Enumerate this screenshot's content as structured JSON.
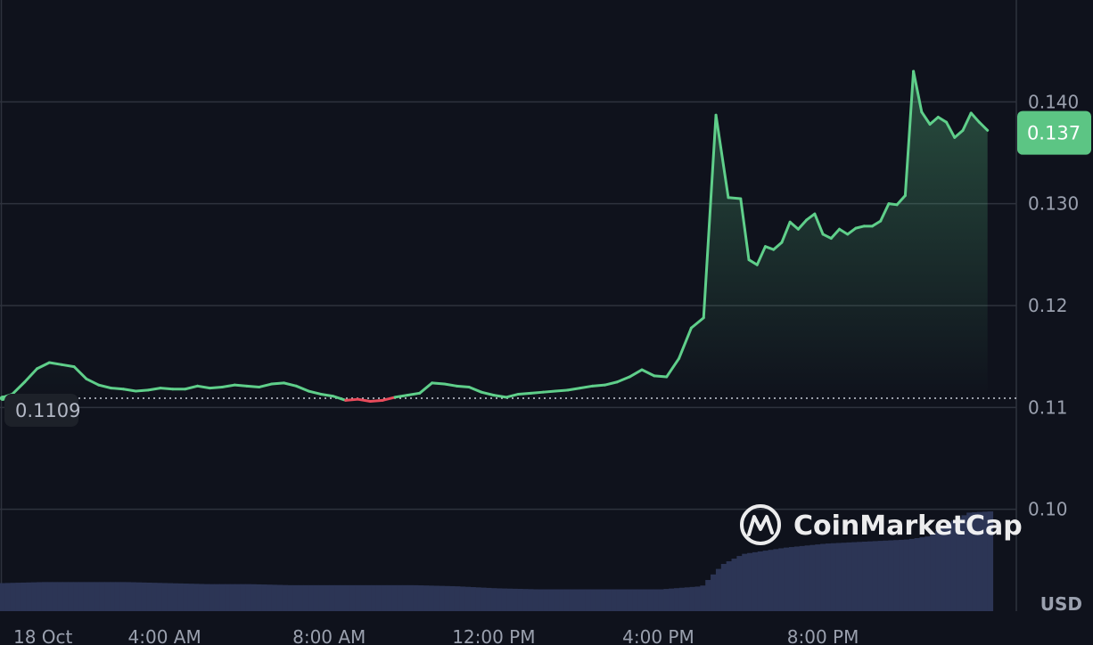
{
  "chart_data": {
    "type": "line",
    "currency": "USD",
    "y_ticks": [
      {
        "value": 0.1,
        "label": "0.10"
      },
      {
        "value": 0.11,
        "label": "0.11"
      },
      {
        "value": 0.12,
        "label": "0.12"
      },
      {
        "value": 0.13,
        "label": "0.130"
      },
      {
        "value": 0.14,
        "label": "0.140"
      }
    ],
    "ylim": [
      0.09,
      0.15
    ],
    "x_ticks": [
      {
        "hour": 0,
        "label": "18 Oct"
      },
      {
        "hour": 4,
        "label": "4:00 AM"
      },
      {
        "hour": 8,
        "label": "8:00 AM"
      },
      {
        "hour": 12,
        "label": "12:00 PM"
      },
      {
        "hour": 16,
        "label": "4:00 PM"
      },
      {
        "hour": 20,
        "label": "8:00 PM"
      }
    ],
    "xlim": [
      0,
      24.7
    ],
    "reference_price": {
      "value": 0.1109,
      "label": "0.1109"
    },
    "current_price": {
      "value": 0.137,
      "label": "0.137"
    },
    "colors": {
      "up": "#5fcf8a",
      "down": "#e94b5b",
      "volume": "#2c3555",
      "grid": "#2e323d"
    },
    "watermark": "CoinMarketCap",
    "price_series": {
      "hours": [
        0,
        0.3,
        0.6,
        0.9,
        1.2,
        1.5,
        1.8,
        2.1,
        2.4,
        2.7,
        3.0,
        3.3,
        3.6,
        3.9,
        4.2,
        4.5,
        4.8,
        5.1,
        5.4,
        5.7,
        6.0,
        6.3,
        6.6,
        6.9,
        7.2,
        7.5,
        7.8,
        8.1,
        8.4,
        8.7,
        9.0,
        9.3,
        9.6,
        9.9,
        10.2,
        10.5,
        10.8,
        11.1,
        11.4,
        11.7,
        12.0,
        12.3,
        12.6,
        12.9,
        13.2,
        13.5,
        13.8,
        14.1,
        14.4,
        14.7,
        15.0,
        15.3,
        15.6,
        15.9,
        16.2,
        16.5,
        16.8,
        17.1,
        17.4,
        17.7,
        18.0,
        18.2,
        18.4,
        18.6,
        18.8,
        19.0,
        19.2,
        19.4,
        19.6,
        19.8,
        20.0,
        20.2,
        20.4,
        20.6,
        20.8,
        21.0,
        21.2,
        21.4,
        21.6,
        21.8,
        22.0,
        22.2,
        22.4,
        22.6,
        22.8,
        23.0,
        23.2,
        23.4,
        23.6,
        23.8,
        24.0
      ],
      "values": [
        0.1109,
        0.1113,
        0.1125,
        0.1138,
        0.1144,
        0.1142,
        0.114,
        0.1128,
        0.1122,
        0.1119,
        0.1118,
        0.1116,
        0.1117,
        0.1119,
        0.1118,
        0.1118,
        0.1121,
        0.1119,
        0.112,
        0.1122,
        0.1121,
        0.112,
        0.1123,
        0.1124,
        0.1121,
        0.1116,
        0.1113,
        0.1111,
        0.1107,
        0.1108,
        0.1106,
        0.1107,
        0.111,
        0.1112,
        0.1114,
        0.1124,
        0.1123,
        0.1121,
        0.112,
        0.1115,
        0.1112,
        0.111,
        0.1113,
        0.1114,
        0.1115,
        0.1116,
        0.1117,
        0.1119,
        0.1121,
        0.1122,
        0.1125,
        0.113,
        0.1137,
        0.1131,
        0.113,
        0.1148,
        0.1178,
        0.1188,
        0.1387,
        0.1306,
        0.1305,
        0.1245,
        0.124,
        0.1258,
        0.1255,
        0.1262,
        0.1282,
        0.1275,
        0.1284,
        0.129,
        0.127,
        0.1266,
        0.1275,
        0.127,
        0.1276,
        0.1278,
        0.1278,
        0.1283,
        0.13,
        0.1299,
        0.1308,
        0.143,
        0.139,
        0.1378,
        0.1385,
        0.138,
        0.1365,
        0.1372,
        0.1389,
        0.138,
        0.1372
      ]
    },
    "volume_series": {
      "hours": [
        0,
        1,
        2,
        3,
        4,
        5,
        6,
        7,
        8,
        9,
        10,
        11,
        12,
        13,
        14,
        15,
        16,
        17,
        17.5,
        18,
        18.5,
        19,
        19.5,
        20,
        20.5,
        21,
        21.5,
        22,
        22.5,
        23,
        23.5,
        24
      ],
      "relative": [
        0.27,
        0.28,
        0.28,
        0.28,
        0.27,
        0.26,
        0.26,
        0.25,
        0.25,
        0.25,
        0.25,
        0.24,
        0.22,
        0.21,
        0.21,
        0.21,
        0.21,
        0.24,
        0.45,
        0.55,
        0.58,
        0.61,
        0.63,
        0.65,
        0.66,
        0.67,
        0.68,
        0.69,
        0.72,
        0.85,
        0.95,
        0.96
      ]
    }
  }
}
